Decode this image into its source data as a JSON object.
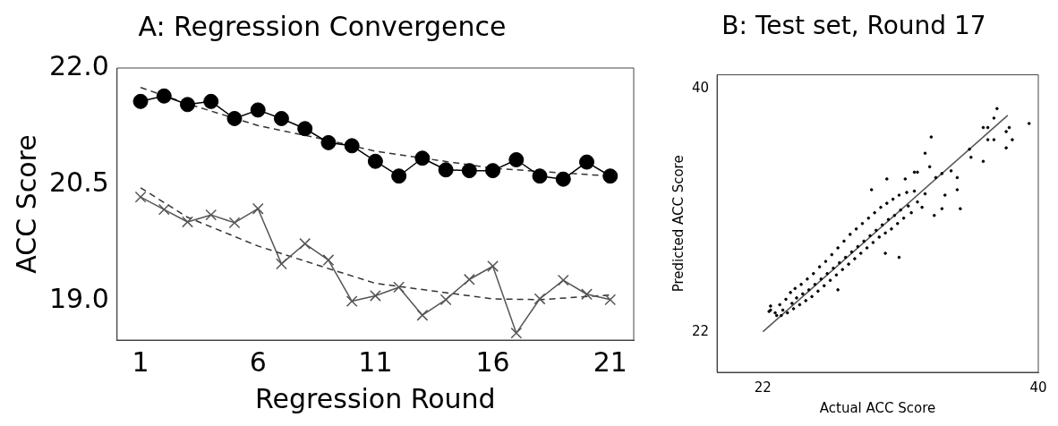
{
  "chart_data": [
    {
      "type": "line",
      "title": "A: Regression Convergence",
      "xlabel": "Regression Round",
      "ylabel": "ACC Score",
      "x": [
        1,
        2,
        3,
        4,
        5,
        6,
        7,
        8,
        9,
        10,
        11,
        12,
        13,
        14,
        15,
        16,
        17,
        18,
        19,
        20,
        21
      ],
      "xlim": [
        0,
        22
      ],
      "xticks": [
        1,
        6,
        11,
        16,
        21
      ],
      "ylim": [
        18.5,
        22.0
      ],
      "yticks": [
        {
          "value": 19,
          "label": "19.0"
        },
        {
          "value": 20.5,
          "label": "20.5"
        },
        {
          "value": 22,
          "label": "22.0"
        }
      ],
      "series": [
        {
          "color": "#000000",
          "marker": "circle",
          "line_style": "solid",
          "values": [
            21.57,
            21.64,
            21.53,
            21.57,
            21.35,
            21.46,
            21.35,
            21.22,
            21.04,
            21.0,
            20.8,
            20.61,
            20.84,
            20.69,
            20.68,
            20.68,
            20.82,
            20.61,
            20.57,
            20.79,
            20.61
          ]
        },
        {
          "color": "#555555",
          "marker": "cross",
          "line_style": "solid",
          "values": [
            20.34,
            20.18,
            20.02,
            20.11,
            20.01,
            20.19,
            19.48,
            19.74,
            19.53,
            19.0,
            19.07,
            19.18,
            18.82,
            19.02,
            19.28,
            19.45,
            18.59,
            19.03,
            19.27,
            19.09,
            19.02
          ]
        },
        {
          "color": "#333333",
          "marker": "none",
          "line_style": "dashed",
          "x": [
            1,
            3,
            6,
            9,
            11,
            16,
            21
          ],
          "values": [
            21.75,
            21.54,
            21.26,
            21.07,
            20.93,
            20.71,
            20.61
          ]
        },
        {
          "color": "#333333",
          "marker": "none",
          "line_style": "dashed",
          "x": [
            1,
            3,
            6,
            9,
            11,
            16,
            18,
            21
          ],
          "values": [
            20.46,
            20.08,
            19.71,
            19.42,
            19.23,
            19.03,
            19.02,
            19.08
          ]
        }
      ]
    },
    {
      "type": "scatter",
      "title": "B: Test set, Round 17",
      "xlabel": "Actual ACC Score",
      "ylabel": "Predicted ACC Score",
      "xlim": [
        19,
        40
      ],
      "xticks": [
        22,
        40
      ],
      "ylim": [
        19,
        41
      ],
      "yticks": [
        22,
        40
      ],
      "series": [
        {
          "type": "scatter",
          "color": "#000000",
          "marker": "circle",
          "x": [
            22.5,
            22.9,
            23.1,
            23.3,
            23.5,
            23.6,
            23.8,
            23.9,
            24.0,
            24.1,
            24.2,
            24.4,
            24.5,
            24.6,
            24.8,
            24.9,
            25.0,
            25.2,
            25.3,
            25.4,
            25.6,
            25.7,
            25.8,
            26.0,
            26.1,
            26.2,
            26.4,
            26.5,
            26.6,
            26.8,
            26.9,
            27.0,
            27.2,
            27.3,
            27.4,
            27.6,
            27.7,
            27.8,
            28.0,
            28.1,
            28.2,
            28.4,
            28.5,
            28.6,
            28.8,
            28.9,
            29.0,
            29.2,
            29.3,
            29.4,
            29.6,
            29.7,
            29.8,
            30.0,
            30.1,
            30.2,
            30.4,
            30.5,
            30.6,
            30.8,
            30.9,
            31.0,
            31.2,
            31.4,
            31.5,
            31.7,
            31.9,
            32.1,
            32.4,
            32.6,
            37.3,
            37.1,
            39.4,
            36.4,
            36.7,
            38.1,
            37.9,
            38.3,
            37.1,
            36.7,
            37.9,
            36.4,
            35.5,
            35.6,
            33.0,
            32.6,
            32.9,
            34.3,
            33.7,
            34.7,
            33.3,
            32.1,
            31.9,
            30.1,
            31.3,
            34.7,
            34.9,
            33.7,
            33.2,
            33.9,
            29.1,
            30.9,
            30.0,
            26.9,
            22.5,
            22.4,
            22.8,
            23.2
          ],
          "values": [
            23.6,
            23.2,
            24.0,
            23.6,
            24.4,
            23.4,
            24.9,
            24.1,
            23.7,
            25.2,
            24.5,
            24.0,
            25.5,
            24.8,
            24.3,
            25.9,
            25.1,
            24.6,
            26.3,
            25.5,
            25.0,
            26.8,
            25.9,
            25.4,
            27.2,
            26.3,
            25.8,
            27.7,
            26.7,
            26.2,
            28.2,
            27.1,
            26.6,
            28.7,
            27.5,
            27.0,
            29.2,
            27.9,
            27.4,
            29.6,
            28.3,
            27.8,
            30.0,
            28.7,
            28.2,
            30.4,
            29.1,
            28.6,
            30.8,
            29.5,
            29.0,
            31.2,
            29.9,
            29.3,
            31.5,
            30.3,
            29.6,
            31.8,
            30.6,
            30.0,
            32.1,
            31.0,
            30.4,
            32.3,
            31.3,
            30.8,
            32.4,
            31.6,
            31.2,
            32.2,
            38.5,
            37.8,
            37.4,
            37.1,
            37.1,
            37.1,
            36.8,
            36.2,
            36.2,
            36.2,
            35.6,
            34.6,
            35.5,
            34.9,
            36.4,
            35.2,
            34.2,
            33.9,
            33.7,
            33.4,
            33.4,
            33.8,
            33.8,
            33.3,
            33.3,
            32.5,
            31.1,
            31.1,
            30.6,
            32.1,
            32.5,
            27.5,
            27.8,
            25.1,
            23.9,
            23.5,
            23.4,
            23.2
          ]
        },
        {
          "type": "line",
          "color": "#555555",
          "marker": "none",
          "line_style": "solid",
          "x": [
            22,
            38
          ],
          "values": [
            22,
            38
          ]
        }
      ]
    }
  ]
}
